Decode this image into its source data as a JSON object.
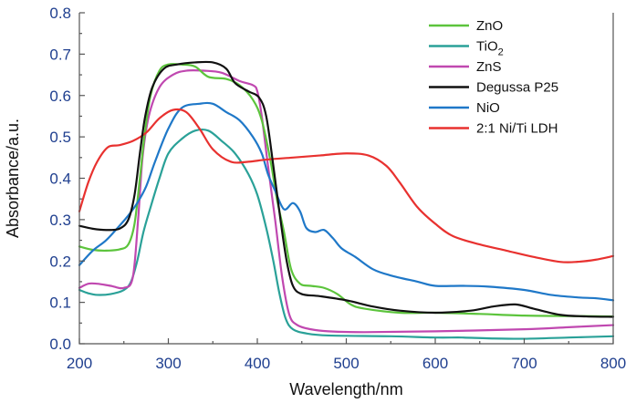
{
  "chart_data": {
    "type": "line",
    "title": "",
    "xlabel": "Wavelength/nm",
    "ylabel": "Absorbance/a.u.",
    "xlim": [
      200,
      800
    ],
    "ylim": [
      0.0,
      0.8
    ],
    "x_ticks": [
      "200",
      "300",
      "400",
      "500",
      "600",
      "700",
      "800"
    ],
    "y_ticks": [
      "0.0",
      "0.1",
      "0.2",
      "0.3",
      "0.4",
      "0.5",
      "0.6",
      "0.7",
      "0.8"
    ],
    "grid": false,
    "legend_position": "top-right",
    "series": [
      {
        "name": "ZnO",
        "name_main": "ZnO",
        "name_sub": "",
        "color": "#5cc43c",
        "points": [
          [
            200,
            0.235
          ],
          [
            215,
            0.227
          ],
          [
            230,
            0.225
          ],
          [
            245,
            0.228
          ],
          [
            255,
            0.24
          ],
          [
            262,
            0.29
          ],
          [
            268,
            0.4
          ],
          [
            273,
            0.5
          ],
          [
            280,
            0.6
          ],
          [
            290,
            0.66
          ],
          [
            300,
            0.675
          ],
          [
            315,
            0.675
          ],
          [
            330,
            0.67
          ],
          [
            345,
            0.645
          ],
          [
            365,
            0.64
          ],
          [
            380,
            0.625
          ],
          [
            395,
            0.59
          ],
          [
            405,
            0.54
          ],
          [
            415,
            0.44
          ],
          [
            422,
            0.35
          ],
          [
            430,
            0.27
          ],
          [
            438,
            0.18
          ],
          [
            448,
            0.145
          ],
          [
            460,
            0.14
          ],
          [
            475,
            0.135
          ],
          [
            490,
            0.12
          ],
          [
            505,
            0.095
          ],
          [
            520,
            0.085
          ],
          [
            560,
            0.075
          ],
          [
            600,
            0.075
          ],
          [
            650,
            0.072
          ],
          [
            700,
            0.068
          ],
          [
            750,
            0.067
          ],
          [
            800,
            0.066
          ]
        ]
      },
      {
        "name": "TiO2",
        "name_main": "TiO",
        "name_sub": "2",
        "color": "#2aa198",
        "points": [
          [
            200,
            0.13
          ],
          [
            210,
            0.122
          ],
          [
            220,
            0.118
          ],
          [
            235,
            0.12
          ],
          [
            250,
            0.13
          ],
          [
            258,
            0.15
          ],
          [
            265,
            0.2
          ],
          [
            272,
            0.27
          ],
          [
            280,
            0.33
          ],
          [
            290,
            0.4
          ],
          [
            300,
            0.46
          ],
          [
            315,
            0.495
          ],
          [
            330,
            0.515
          ],
          [
            345,
            0.515
          ],
          [
            360,
            0.49
          ],
          [
            375,
            0.46
          ],
          [
            390,
            0.41
          ],
          [
            400,
            0.36
          ],
          [
            410,
            0.28
          ],
          [
            418,
            0.2
          ],
          [
            425,
            0.12
          ],
          [
            432,
            0.06
          ],
          [
            440,
            0.035
          ],
          [
            455,
            0.025
          ],
          [
            480,
            0.02
          ],
          [
            550,
            0.018
          ],
          [
            600,
            0.015
          ],
          [
            630,
            0.015
          ],
          [
            660,
            0.013
          ],
          [
            700,
            0.012
          ],
          [
            750,
            0.015
          ],
          [
            800,
            0.018
          ]
        ]
      },
      {
        "name": "ZnS",
        "name_main": "ZnS",
        "name_sub": "",
        "color": "#c048b0",
        "points": [
          [
            200,
            0.135
          ],
          [
            210,
            0.145
          ],
          [
            220,
            0.145
          ],
          [
            235,
            0.14
          ],
          [
            250,
            0.135
          ],
          [
            260,
            0.16
          ],
          [
            266,
            0.3
          ],
          [
            271,
            0.45
          ],
          [
            278,
            0.55
          ],
          [
            290,
            0.62
          ],
          [
            305,
            0.65
          ],
          [
            320,
            0.66
          ],
          [
            340,
            0.66
          ],
          [
            360,
            0.655
          ],
          [
            380,
            0.635
          ],
          [
            395,
            0.625
          ],
          [
            400,
            0.61
          ],
          [
            405,
            0.55
          ],
          [
            412,
            0.43
          ],
          [
            420,
            0.3
          ],
          [
            428,
            0.16
          ],
          [
            436,
            0.07
          ],
          [
            445,
            0.045
          ],
          [
            460,
            0.035
          ],
          [
            480,
            0.03
          ],
          [
            520,
            0.028
          ],
          [
            600,
            0.03
          ],
          [
            700,
            0.035
          ],
          [
            750,
            0.04
          ],
          [
            800,
            0.045
          ]
        ]
      },
      {
        "name": "Degussa P25",
        "name_main": "Degussa P25",
        "name_sub": "",
        "color": "#111111",
        "points": [
          [
            200,
            0.285
          ],
          [
            215,
            0.278
          ],
          [
            230,
            0.275
          ],
          [
            245,
            0.278
          ],
          [
            255,
            0.3
          ],
          [
            262,
            0.36
          ],
          [
            268,
            0.46
          ],
          [
            274,
            0.55
          ],
          [
            282,
            0.62
          ],
          [
            295,
            0.665
          ],
          [
            310,
            0.675
          ],
          [
            330,
            0.68
          ],
          [
            350,
            0.68
          ],
          [
            365,
            0.665
          ],
          [
            375,
            0.63
          ],
          [
            390,
            0.61
          ],
          [
            402,
            0.595
          ],
          [
            410,
            0.55
          ],
          [
            418,
            0.43
          ],
          [
            426,
            0.3
          ],
          [
            433,
            0.2
          ],
          [
            440,
            0.14
          ],
          [
            450,
            0.12
          ],
          [
            470,
            0.115
          ],
          [
            500,
            0.105
          ],
          [
            530,
            0.09
          ],
          [
            560,
            0.08
          ],
          [
            600,
            0.075
          ],
          [
            640,
            0.08
          ],
          [
            665,
            0.09
          ],
          [
            690,
            0.095
          ],
          [
            710,
            0.085
          ],
          [
            740,
            0.07
          ],
          [
            770,
            0.066
          ],
          [
            800,
            0.065
          ]
        ]
      },
      {
        "name": "NiO",
        "name_main": "NiO",
        "name_sub": "",
        "color": "#1f78c8",
        "points": [
          [
            200,
            0.19
          ],
          [
            215,
            0.225
          ],
          [
            230,
            0.25
          ],
          [
            245,
            0.285
          ],
          [
            255,
            0.31
          ],
          [
            265,
            0.34
          ],
          [
            275,
            0.38
          ],
          [
            285,
            0.44
          ],
          [
            300,
            0.52
          ],
          [
            315,
            0.57
          ],
          [
            335,
            0.58
          ],
          [
            350,
            0.58
          ],
          [
            365,
            0.56
          ],
          [
            380,
            0.54
          ],
          [
            395,
            0.5
          ],
          [
            405,
            0.46
          ],
          [
            412,
            0.41
          ],
          [
            420,
            0.37
          ],
          [
            430,
            0.325
          ],
          [
            440,
            0.34
          ],
          [
            448,
            0.32
          ],
          [
            455,
            0.28
          ],
          [
            465,
            0.27
          ],
          [
            475,
            0.275
          ],
          [
            485,
            0.255
          ],
          [
            495,
            0.23
          ],
          [
            510,
            0.21
          ],
          [
            530,
            0.18
          ],
          [
            550,
            0.165
          ],
          [
            580,
            0.15
          ],
          [
            600,
            0.14
          ],
          [
            630,
            0.14
          ],
          [
            660,
            0.138
          ],
          [
            700,
            0.13
          ],
          [
            730,
            0.118
          ],
          [
            760,
            0.112
          ],
          [
            780,
            0.11
          ],
          [
            800,
            0.105
          ]
        ]
      },
      {
        "name": "2:1 Ni/Ti LDH",
        "name_main": "2:1 Ni/Ti LDH",
        "name_sub": "",
        "color": "#e8312f",
        "points": [
          [
            200,
            0.32
          ],
          [
            210,
            0.39
          ],
          [
            220,
            0.44
          ],
          [
            232,
            0.475
          ],
          [
            245,
            0.48
          ],
          [
            260,
            0.49
          ],
          [
            275,
            0.51
          ],
          [
            290,
            0.545
          ],
          [
            305,
            0.565
          ],
          [
            320,
            0.56
          ],
          [
            335,
            0.52
          ],
          [
            350,
            0.47
          ],
          [
            370,
            0.44
          ],
          [
            390,
            0.44
          ],
          [
            410,
            0.445
          ],
          [
            440,
            0.45
          ],
          [
            470,
            0.455
          ],
          [
            500,
            0.46
          ],
          [
            525,
            0.455
          ],
          [
            545,
            0.43
          ],
          [
            560,
            0.39
          ],
          [
            580,
            0.33
          ],
          [
            600,
            0.29
          ],
          [
            620,
            0.26
          ],
          [
            650,
            0.24
          ],
          [
            680,
            0.225
          ],
          [
            710,
            0.21
          ],
          [
            740,
            0.198
          ],
          [
            760,
            0.198
          ],
          [
            780,
            0.203
          ],
          [
            800,
            0.212
          ]
        ]
      }
    ]
  }
}
